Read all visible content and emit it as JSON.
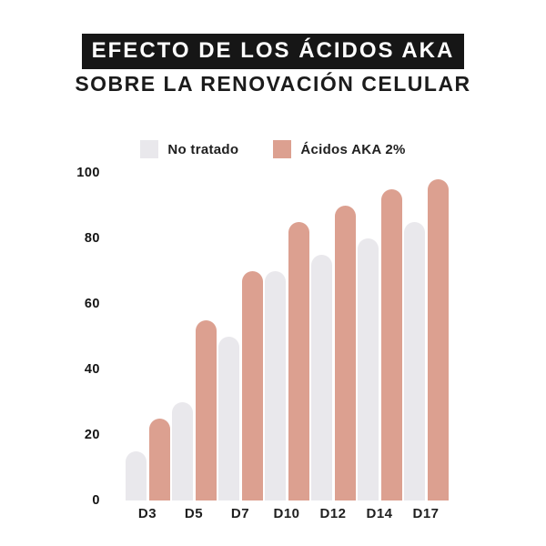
{
  "header": {
    "title_line1": "EFECTO DE LOS ÁCIDOS AKA",
    "title_line2": "SOBRE LA RENOVACIÓN CELULAR"
  },
  "colors": {
    "title_background": "#161616",
    "title_text": "#ffffff",
    "subtitle_text": "#1b1b1b",
    "untreated_gray": "#E9E8EC",
    "acids_salmon": "#DCA090",
    "page_background": "#ffffff"
  },
  "chart_data": {
    "type": "bar",
    "title": "EFECTO DE LOS ÁCIDOS AKA SOBRE LA RENOVACIÓN CELULAR",
    "categories": [
      "D3",
      "D5",
      "D7",
      "D10",
      "D12",
      "D14",
      "D17"
    ],
    "series": [
      {
        "name": "No tratado",
        "color": "#E9E8EC",
        "values": [
          15,
          30,
          50,
          70,
          75,
          80,
          85
        ]
      },
      {
        "name": "Ácidos AKA 2%",
        "color": "#DCA090",
        "values": [
          25,
          55,
          70,
          85,
          90,
          95,
          98
        ]
      }
    ],
    "xlabel": "",
    "ylabel": "",
    "yticks": [
      0,
      20,
      40,
      60,
      80,
      100
    ],
    "ylim": [
      0,
      100
    ],
    "grid": false,
    "legend_position": "top-center",
    "bar_style": "rounded-top"
  }
}
